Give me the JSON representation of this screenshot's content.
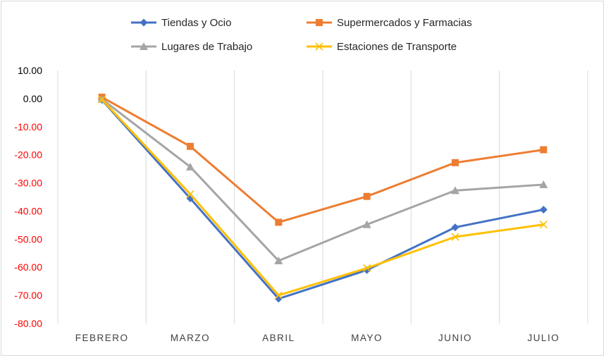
{
  "chart_data": {
    "type": "line",
    "title": "",
    "xlabel": "",
    "ylabel": "",
    "categories": [
      "FEBRERO",
      "MARZO",
      "ABRIL",
      "MAYO",
      "JUNIO",
      "JULIO"
    ],
    "ylim": [
      -80,
      10
    ],
    "yticks": [
      "10.00",
      "0.00",
      "-10.00",
      "-20.00",
      "-30.00",
      "-40.00",
      "-50.00",
      "-60.00",
      "-70.00",
      "-80.00"
    ],
    "ytick_colors": {
      "positive_and_zero": "#000000",
      "negative": "#ff0000"
    },
    "grid": "vertical",
    "legend_position": "top",
    "series": [
      {
        "name": "Tiendas y Ocio",
        "color": "#4472c4",
        "marker": "diamond",
        "values": [
          -0.5,
          -35.5,
          -71.2,
          -61.0,
          -45.8,
          -39.5
        ]
      },
      {
        "name": "Supermercados y Farmacias",
        "color": "#ed7d31",
        "marker": "square",
        "values": [
          0.5,
          -17.0,
          -44.0,
          -34.8,
          -22.8,
          -18.2
        ]
      },
      {
        "name": "Lugares de Trabajo",
        "color": "#a5a5a5",
        "marker": "triangle",
        "values": [
          -0.2,
          -24.3,
          -57.7,
          -44.8,
          -32.7,
          -30.6
        ]
      },
      {
        "name": "Estaciones de Transporte",
        "color": "#ffc000",
        "marker": "x",
        "values": [
          -0.3,
          -34.0,
          -70.0,
          -60.3,
          -49.2,
          -44.8
        ]
      }
    ]
  }
}
